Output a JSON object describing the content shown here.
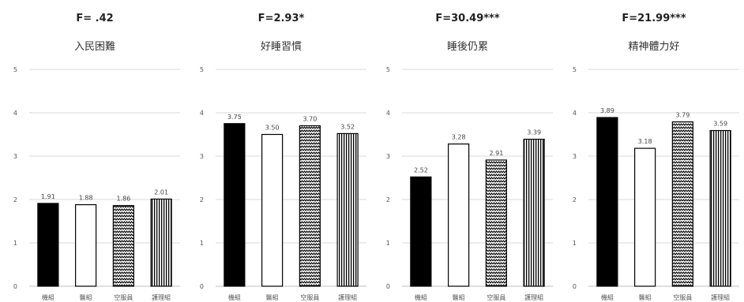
{
  "chart_data": [
    {
      "type": "bar",
      "title": "F= .42",
      "subtitle": "入民困難",
      "categories": [
        "機組",
        "醫組",
        "空服員",
        "護理組"
      ],
      "values": [
        1.91,
        1.88,
        1.86,
        2.01
      ],
      "value_labels": [
        "1.91",
        "1.88",
        "1.86",
        "2.01"
      ],
      "ylim": [
        0,
        5
      ],
      "yticks": [
        "0",
        "1",
        "2",
        "3",
        "4",
        "5"
      ],
      "grid": true
    },
    {
      "type": "bar",
      "title": "F=2.93*",
      "subtitle": "好睡習慣",
      "categories": [
        "機組",
        "醫組",
        "空服員",
        "護理組"
      ],
      "values": [
        3.75,
        3.5,
        3.7,
        3.52
      ],
      "value_labels": [
        "3.75",
        "3.50",
        "3.70",
        "3.52"
      ],
      "ylim": [
        0,
        5
      ],
      "yticks": [
        "0",
        "1",
        "2",
        "3",
        "4",
        "5"
      ],
      "grid": true
    },
    {
      "type": "bar",
      "title": "F=30.49***",
      "subtitle": "睡後仍累",
      "categories": [
        "機組",
        "醫組",
        "空服員",
        "護理組"
      ],
      "values": [
        2.52,
        3.28,
        2.91,
        3.39
      ],
      "value_labels": [
        "2.52",
        "3.28",
        "2.91",
        "3.39"
      ],
      "ylim": [
        0,
        5
      ],
      "yticks": [
        "0",
        "1",
        "2",
        "3",
        "4",
        "5"
      ],
      "grid": true
    },
    {
      "type": "bar",
      "title": "F=21.99***",
      "subtitle": "精神體力好",
      "categories": [
        "機組",
        "醫組",
        "空服員",
        "護理組"
      ],
      "values": [
        3.89,
        3.18,
        3.79,
        3.59
      ],
      "value_labels": [
        "3.89",
        "3.18",
        "3.79",
        "3.59"
      ],
      "ylim": [
        0,
        5
      ],
      "yticks": [
        "0",
        "1",
        "2",
        "3",
        "4",
        "5"
      ],
      "grid": true
    }
  ],
  "fills": [
    "solid-black",
    "white",
    "zigzag-pattern",
    "vertical-stripes"
  ]
}
